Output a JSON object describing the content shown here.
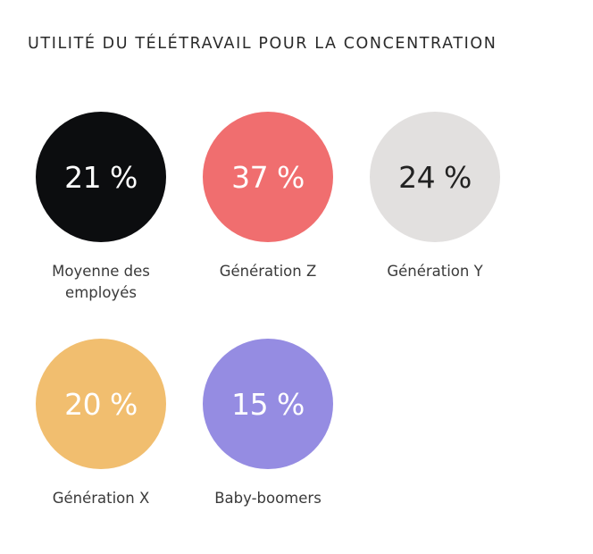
{
  "chart_data": {
    "type": "table",
    "title": "UTILITÉ DU TÉLÉTRAVAIL POUR LA CONCENTRATION",
    "items": [
      {
        "label": "Moyenne des employés",
        "value": 21,
        "value_label": "21 %",
        "color": "#0c0d0f",
        "text_color": "#ffffff"
      },
      {
        "label": "Génération Z",
        "value": 37,
        "value_label": "37 %",
        "color": "#f06e6f",
        "text_color": "#ffffff"
      },
      {
        "label": "Génération Y",
        "value": 24,
        "value_label": "24 %",
        "color": "#e2e0df",
        "text_color": "#222222"
      },
      {
        "label": "Génération X",
        "value": 20,
        "value_label": "20 %",
        "color": "#f1be6f",
        "text_color": "#ffffff"
      },
      {
        "label": "Baby-boomers",
        "value": 15,
        "value_label": "15 %",
        "color": "#958ce2",
        "text_color": "#ffffff"
      }
    ]
  }
}
